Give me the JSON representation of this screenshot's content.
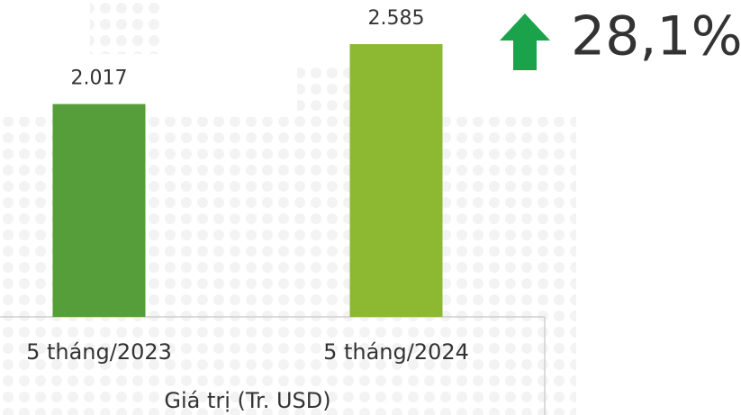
{
  "chart_data": {
    "type": "bar",
    "x_label": "Giá trị (Tr. USD)",
    "categories": [
      "5 tháng/2023",
      "5 tháng/2024"
    ],
    "values": [
      2017,
      2585
    ],
    "value_labels": [
      "2.017",
      "2.585"
    ],
    "colors": [
      "#559e3a",
      "#8db832"
    ],
    "annotation": "28,1%",
    "annotation_color": "#1aa34a"
  }
}
